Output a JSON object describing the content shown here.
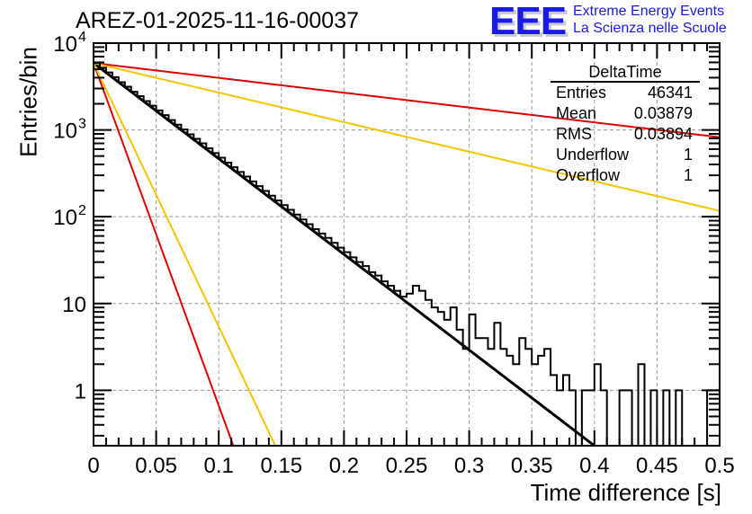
{
  "header": {
    "title": "AREZ-01-2025-11-16-00037",
    "logo": "EEE",
    "logo_line1": "Extreme Energy Events",
    "logo_line2": "La Scienza nelle Scuole"
  },
  "stats_box": {
    "title": "DeltaTime",
    "rows": [
      {
        "label": "Entries",
        "value": "46341"
      },
      {
        "label": "Mean",
        "value": "0.03879"
      },
      {
        "label": "RMS",
        "value": "0.03894"
      },
      {
        "label": "Underflow",
        "value": "1"
      },
      {
        "label": "Overflow",
        "value": "1"
      }
    ]
  },
  "colors": {
    "histogram": "#000000",
    "fit": "#000000",
    "red_band": "#e00000",
    "yellow_band": "#f5c400",
    "grid": "#999999"
  },
  "chart_data": {
    "type": "bar",
    "title": "AREZ-01-2025-11-16-00037",
    "xlabel": "Time difference [s]",
    "ylabel": "Entries/bin",
    "xlim": [
      0,
      0.5
    ],
    "ylim": [
      0.23,
      10000
    ],
    "yscale": "log",
    "grid": true,
    "legend": "top-right",
    "xticks": [
      "0",
      "0.05",
      "0.1",
      "0.15",
      "0.2",
      "0.25",
      "0.3",
      "0.35",
      "0.4",
      "0.45",
      "0.5"
    ],
    "yticks": [
      {
        "value": 1,
        "label": "1"
      },
      {
        "value": 10,
        "label": "10"
      },
      {
        "value": 100,
        "label": "10",
        "exp": "2"
      },
      {
        "value": 1000,
        "label": "10",
        "exp": "3"
      },
      {
        "value": 10000,
        "label": "10",
        "exp": "4"
      }
    ],
    "bin_width": 0.005,
    "histogram": [
      5900,
      5200,
      4600,
      4050,
      3550,
      3150,
      2750,
      2450,
      2150,
      1900,
      1680,
      1480,
      1300,
      1150,
      1010,
      890,
      790,
      700,
      615,
      540,
      478,
      420,
      372,
      328,
      290,
      255,
      225,
      198,
      175,
      154,
      136,
      120,
      106,
      93,
      82,
      72,
      64,
      57,
      50,
      44,
      39,
      34,
      30,
      27,
      23,
      21,
      18,
      16,
      14,
      12,
      13,
      16,
      14,
      11,
      9,
      8,
      6.5,
      9,
      5,
      3,
      7.5,
      4,
      4,
      3,
      6,
      3,
      2.5,
      2,
      4,
      3,
      2,
      2.5,
      3,
      1.5,
      1,
      1.5,
      1,
      0,
      1,
      1,
      2,
      1,
      0,
      0,
      1,
      1,
      0,
      2,
      0,
      1,
      0,
      1,
      0,
      1,
      0,
      0,
      0,
      0,
      1,
      1
    ],
    "fits": [
      {
        "name": "fit",
        "color": "#000000",
        "A": 5900,
        "tau": 0.0394
      },
      {
        "name": "red-steep",
        "color": "#e00000",
        "A": 5900,
        "tau": 0.011
      },
      {
        "name": "yellow-steep",
        "color": "#f5c400",
        "A": 5900,
        "tau": 0.0143
      },
      {
        "name": "red-shallow",
        "color": "#e00000",
        "A": 5900,
        "tau": 0.254
      },
      {
        "name": "yellow-shallow",
        "color": "#f5c400",
        "A": 5900,
        "tau": 0.1275
      }
    ]
  }
}
